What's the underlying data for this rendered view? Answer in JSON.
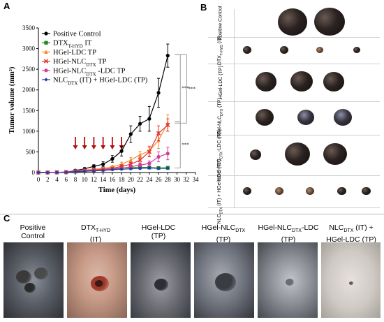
{
  "panels": {
    "a": "A",
    "b": "B",
    "c": "C"
  },
  "chart_data": {
    "type": "line",
    "xlabel": "Time (days)",
    "ylabel": "Tumor volume (mm³)",
    "xlim": [
      0,
      34
    ],
    "ylim": [
      0,
      3500
    ],
    "xticks": [
      0,
      2,
      4,
      6,
      8,
      10,
      12,
      14,
      16,
      18,
      20,
      22,
      24,
      26,
      28,
      30,
      32,
      34
    ],
    "yticks": [
      0,
      500,
      1000,
      1500,
      2000,
      2500,
      3000,
      3500
    ],
    "legend_position": "top-left",
    "treatment_days": [
      8,
      10,
      12,
      14,
      16,
      18
    ],
    "significance": [
      "***",
      "***",
      "***"
    ],
    "series": [
      {
        "name": "Positive Control",
        "color": "#000000",
        "marker": "circle",
        "x": [
          0,
          2,
          4,
          6,
          8,
          10,
          12,
          14,
          16,
          18,
          20,
          22,
          24,
          26,
          28
        ],
        "y": [
          0,
          0,
          5,
          10,
          50,
          90,
          150,
          200,
          330,
          520,
          930,
          1180,
          1300,
          1930,
          2830
        ],
        "err": [
          0,
          0,
          3,
          5,
          15,
          30,
          40,
          60,
          80,
          120,
          200,
          180,
          300,
          350,
          280
        ]
      },
      {
        "name": "DTX",
        "name_sub": "T-HYD",
        "name_suffix": " IT",
        "color": "#1a8c1a",
        "marker": "square",
        "x": [
          0,
          2,
          4,
          6,
          8,
          10,
          12,
          14,
          16,
          18,
          20,
          22,
          24,
          26,
          28
        ],
        "y": [
          0,
          0,
          5,
          8,
          20,
          30,
          50,
          70,
          90,
          110,
          120,
          130,
          120,
          110,
          115
        ],
        "err": [
          0,
          0,
          2,
          3,
          8,
          10,
          15,
          20,
          25,
          30,
          30,
          35,
          35,
          30,
          30
        ]
      },
      {
        "name": "HGel-LDC TP",
        "color": "#f08a2a",
        "marker": "triangle",
        "x": [
          0,
          2,
          4,
          6,
          8,
          10,
          12,
          14,
          16,
          18,
          20,
          22,
          24,
          26,
          28
        ],
        "y": [
          0,
          0,
          5,
          10,
          40,
          60,
          80,
          100,
          140,
          200,
          300,
          430,
          520,
          780,
          1200
        ],
        "err": [
          0,
          0,
          3,
          5,
          10,
          15,
          20,
          25,
          30,
          50,
          60,
          80,
          120,
          200,
          200
        ]
      },
      {
        "name": "HGel-NLC",
        "name_sub": "DTX",
        "name_suffix": " TP",
        "color": "#e83030",
        "marker": "x",
        "x": [
          0,
          2,
          4,
          6,
          8,
          10,
          12,
          14,
          16,
          18,
          20,
          22,
          24,
          26,
          28
        ],
        "y": [
          0,
          0,
          5,
          10,
          35,
          50,
          60,
          80,
          100,
          150,
          200,
          300,
          500,
          950,
          1150
        ],
        "err": [
          0,
          0,
          3,
          5,
          10,
          12,
          15,
          20,
          25,
          40,
          50,
          70,
          120,
          180,
          150
        ]
      },
      {
        "name": "HGel-NLC",
        "name_sub": "DTX",
        "name_suffix": " -LDC TP",
        "color": "#d23c9a",
        "marker": "circle",
        "x": [
          0,
          2,
          4,
          6,
          8,
          10,
          12,
          14,
          16,
          18,
          20,
          22,
          24,
          26,
          28
        ],
        "y": [
          0,
          0,
          5,
          8,
          25,
          40,
          50,
          60,
          80,
          100,
          140,
          180,
          220,
          380,
          460
        ],
        "err": [
          0,
          0,
          2,
          4,
          8,
          10,
          12,
          15,
          20,
          25,
          30,
          40,
          60,
          120,
          150
        ]
      },
      {
        "name": "NLC",
        "name_sub": "DTX",
        "name_suffix": " (IT) + HGel-LDC (TP)",
        "color": "#1c3fa0",
        "marker": "diamond",
        "x": [
          0,
          2,
          4,
          6,
          8,
          10,
          12,
          14,
          16,
          18,
          20,
          22,
          24,
          26,
          28
        ],
        "y": [
          0,
          0,
          5,
          8,
          20,
          30,
          40,
          50,
          70,
          80,
          90,
          100,
          110,
          100,
          100
        ],
        "err": [
          0,
          0,
          2,
          3,
          6,
          8,
          10,
          12,
          15,
          20,
          20,
          25,
          25,
          20,
          20
        ]
      }
    ]
  },
  "panel_b": {
    "rows": [
      {
        "label": "Positive Control"
      },
      {
        "label": "DTX",
        "label_sub": "T-HYD",
        "label_suffix": " (IT)"
      },
      {
        "label": "HGel-LDC (TP)"
      },
      {
        "label": "HGel-NLC",
        "label_sub": "DTX",
        "label_suffix": " (TP)"
      },
      {
        "label": "HGel-NLC",
        "label_sub": "DTX",
        "label_suffix": "-LDC (TP)"
      },
      {
        "label": "NLC",
        "label_sub": "DTX",
        "label_suffix": " (IT) + HGel-LDC (TP)"
      }
    ]
  },
  "panel_c": {
    "titles": [
      {
        "line1": "Positive",
        "line2": "Control"
      },
      {
        "line1": "DTX",
        "line1_sub": "T-HYD",
        "line2": "(IT)"
      },
      {
        "line1": "HGel-LDC",
        "line2": "(TP)"
      },
      {
        "line1": "HGel-NLC",
        "line1_sub": "DTX",
        "line2": "(TP)"
      },
      {
        "line1": "HGel-NLC",
        "line1_sub": "DTX",
        "line1_suffix": "-LDC",
        "line2": "(TP)"
      },
      {
        "line1": "NLC",
        "line1_sub": "DTX",
        "line1_suffix": " (IT) +",
        "line2": "HGel-LDC (TP)"
      }
    ]
  }
}
